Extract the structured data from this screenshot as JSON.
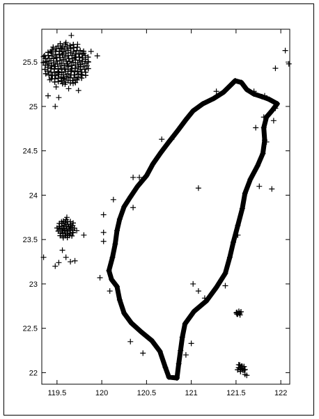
{
  "chart_data": {
    "type": "scatter",
    "title": "",
    "xlabel": "",
    "ylabel": "",
    "xlim": [
      119.33,
      122.1
    ],
    "ylim": [
      21.87,
      25.87
    ],
    "x_ticks": [
      119.5,
      120,
      120.5,
      121,
      121.5,
      122
    ],
    "x_tick_labels": [
      "119.5",
      "120",
      "120.5",
      "121",
      "121.5",
      "122"
    ],
    "y_ticks": [
      22,
      22.5,
      23,
      23.5,
      24,
      24.5,
      25,
      25.5
    ],
    "y_tick_labels": [
      "22",
      "22.5",
      "23",
      "23.5",
      "24",
      "24.5",
      "25",
      "25.5"
    ],
    "grid": false,
    "marker": "+",
    "marker_color": "#000000",
    "series": [
      {
        "values": [
          [
            121.49,
            25.29
          ],
          [
            121.56,
            25.27
          ],
          [
            121.62,
            25.19
          ],
          [
            121.7,
            25.14
          ],
          [
            121.79,
            25.11
          ],
          [
            121.87,
            25.08
          ],
          [
            121.96,
            25.03
          ],
          [
            121.9,
            24.95
          ],
          [
            121.84,
            24.88
          ],
          [
            121.81,
            24.76
          ],
          [
            121.82,
            24.62
          ],
          [
            121.8,
            24.47
          ],
          [
            121.74,
            24.33
          ],
          [
            121.66,
            24.18
          ],
          [
            121.6,
            24.02
          ],
          [
            121.57,
            23.85
          ],
          [
            121.52,
            23.66
          ],
          [
            121.47,
            23.47
          ],
          [
            121.43,
            23.3
          ],
          [
            121.38,
            23.12
          ],
          [
            121.28,
            22.96
          ],
          [
            121.17,
            22.81
          ],
          [
            121.03,
            22.69
          ],
          [
            120.93,
            22.55
          ],
          [
            120.9,
            22.4
          ],
          [
            120.88,
            22.25
          ],
          [
            120.86,
            22.1
          ],
          [
            120.84,
            21.94
          ],
          [
            120.75,
            21.95
          ],
          [
            120.71,
            22.06
          ],
          [
            120.65,
            22.24
          ],
          [
            120.56,
            22.36
          ],
          [
            120.44,
            22.46
          ],
          [
            120.33,
            22.56
          ],
          [
            120.25,
            22.67
          ],
          [
            120.2,
            22.82
          ],
          [
            120.17,
            22.97
          ],
          [
            120.11,
            23.05
          ],
          [
            120.08,
            23.15
          ],
          [
            120.12,
            23.3
          ],
          [
            120.15,
            23.45
          ],
          [
            120.17,
            23.6
          ],
          [
            120.2,
            23.73
          ],
          [
            120.25,
            23.87
          ],
          [
            120.32,
            23.98
          ],
          [
            120.4,
            24.1
          ],
          [
            120.5,
            24.22
          ],
          [
            120.57,
            24.35
          ],
          [
            120.66,
            24.48
          ],
          [
            120.75,
            24.6
          ],
          [
            120.85,
            24.73
          ],
          [
            120.94,
            24.85
          ],
          [
            121.02,
            24.95
          ],
          [
            121.13,
            25.03
          ],
          [
            121.25,
            25.09
          ],
          [
            121.36,
            25.16
          ],
          [
            121.43,
            25.23
          ],
          [
            121.08,
            24.08
          ],
          [
            121.9,
            24.07
          ],
          [
            121.76,
            24.1
          ],
          [
            120.35,
            23.86
          ],
          [
            120.02,
            23.78
          ],
          [
            120.02,
            23.58
          ],
          [
            120.32,
            22.35
          ],
          [
            120.46,
            22.22
          ],
          [
            120.94,
            22.2
          ],
          [
            121.0,
            22.33
          ],
          [
            121.02,
            23.0
          ],
          [
            121.08,
            22.92
          ],
          [
            120.02,
            23.48
          ],
          [
            119.98,
            23.07
          ],
          [
            120.09,
            22.92
          ],
          [
            120.13,
            23.95
          ],
          [
            120.35,
            24.2
          ],
          [
            120.42,
            24.2
          ],
          [
            121.51,
            22.66
          ],
          [
            121.55,
            22.05
          ],
          [
            121.6,
            21.98
          ],
          [
            121.94,
            25.43
          ],
          [
            122.05,
            25.63
          ],
          [
            122.09,
            25.48
          ],
          [
            121.92,
            24.84
          ],
          [
            121.81,
            24.88
          ],
          [
            121.84,
            24.6
          ],
          [
            121.94,
            24.98
          ],
          [
            121.82,
            25.12
          ],
          [
            121.72,
            24.76
          ],
          [
            121.52,
            23.55
          ],
          [
            121.38,
            22.98
          ],
          [
            121.15,
            22.84
          ],
          [
            121.7,
            25.17
          ],
          [
            121.28,
            25.17
          ],
          [
            120.78,
            24.63
          ],
          [
            120.67,
            24.63
          ],
          [
            119.43,
            25.62
          ],
          [
            119.5,
            25.55
          ],
          [
            119.57,
            25.6
          ],
          [
            119.62,
            25.48
          ],
          [
            119.66,
            25.4
          ],
          [
            119.7,
            25.55
          ],
          [
            119.73,
            25.7
          ],
          [
            119.66,
            25.8
          ],
          [
            119.6,
            25.72
          ],
          [
            119.55,
            25.66
          ],
          [
            119.47,
            25.45
          ],
          [
            119.42,
            25.3
          ],
          [
            119.49,
            25.22
          ],
          [
            119.57,
            25.32
          ],
          [
            119.63,
            25.2
          ],
          [
            119.71,
            25.3
          ],
          [
            119.76,
            25.45
          ],
          [
            119.8,
            25.6
          ],
          [
            119.85,
            25.5
          ],
          [
            119.88,
            25.62
          ],
          [
            119.95,
            25.57
          ],
          [
            119.74,
            25.18
          ],
          [
            119.52,
            25.1
          ],
          [
            119.48,
            25.0
          ],
          [
            119.4,
            25.12
          ],
          [
            119.39,
            25.5
          ],
          [
            119.35,
            25.56
          ],
          [
            119.77,
            25.36
          ],
          [
            119.68,
            25.26
          ],
          [
            119.59,
            25.25
          ],
          [
            119.52,
            25.38
          ],
          [
            119.45,
            25.35
          ],
          [
            119.55,
            23.7
          ],
          [
            119.58,
            23.62
          ],
          [
            119.61,
            23.75
          ],
          [
            119.65,
            23.65
          ],
          [
            119.62,
            23.55
          ],
          [
            119.57,
            23.52
          ],
          [
            119.68,
            23.58
          ],
          [
            119.72,
            23.6
          ],
          [
            119.56,
            23.38
          ],
          [
            119.6,
            23.3
          ],
          [
            119.52,
            23.24
          ],
          [
            119.48,
            23.2
          ],
          [
            119.65,
            23.25
          ],
          [
            119.7,
            23.26
          ],
          [
            119.35,
            23.3
          ],
          [
            119.8,
            23.55
          ],
          [
            121.51,
            22.68
          ],
          [
            121.57,
            22.07
          ],
          [
            121.53,
            22.09
          ],
          [
            121.59,
            22.03
          ],
          [
            121.62,
            21.97
          ]
        ]
      }
    ]
  }
}
